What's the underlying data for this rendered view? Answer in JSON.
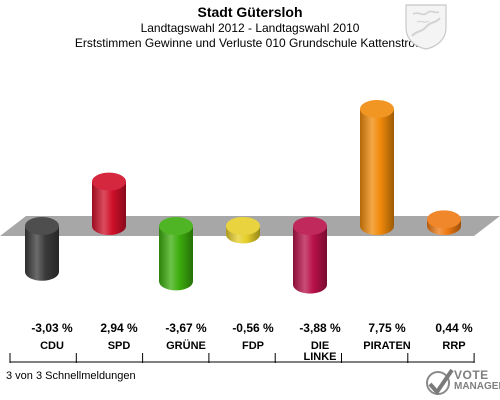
{
  "header": {
    "title": "Stadt Gütersloh",
    "subtitle": "Landtagswahl 2012 - Landtagswahl 2010",
    "subtitle2": "Erststimmen Gewinne und Verluste 010 Grundschule Kattenstroth"
  },
  "footer": {
    "status": "3 von 3 Schnellmeldungen",
    "logo_top": "VOTE",
    "logo_bottom": "MANAGER"
  },
  "colors": {
    "CDU": "#3a3a3a",
    "SPD": "#d0102a",
    "GRÜNE": "#3cad0c",
    "FDP": "#e6cf2a",
    "DIE LINKE": "#b8114a",
    "PIRATEN": "#f08a0a",
    "RRP": "#ee7a12",
    "baseline": "#a7a7a7"
  },
  "chart_data": {
    "type": "bar",
    "title": "Stadt Gütersloh",
    "subtitle": "Landtagswahl 2012 - Landtagswahl 2010",
    "categories": [
      "CDU",
      "SPD",
      "GRÜNE",
      "FDP",
      "DIE LINKE",
      "PIRATEN",
      "RRP"
    ],
    "values": [
      -3.03,
      2.94,
      -3.67,
      -0.56,
      -3.88,
      7.75,
      0.44
    ],
    "value_labels": [
      "-3,03 %",
      "2,94 %",
      "-3,67 %",
      "-0,56 %",
      "-3,88 %",
      "7,75 %",
      "0,44 %"
    ],
    "ylim": [
      -4.5,
      8.5
    ],
    "grid": false,
    "legend": "none"
  }
}
